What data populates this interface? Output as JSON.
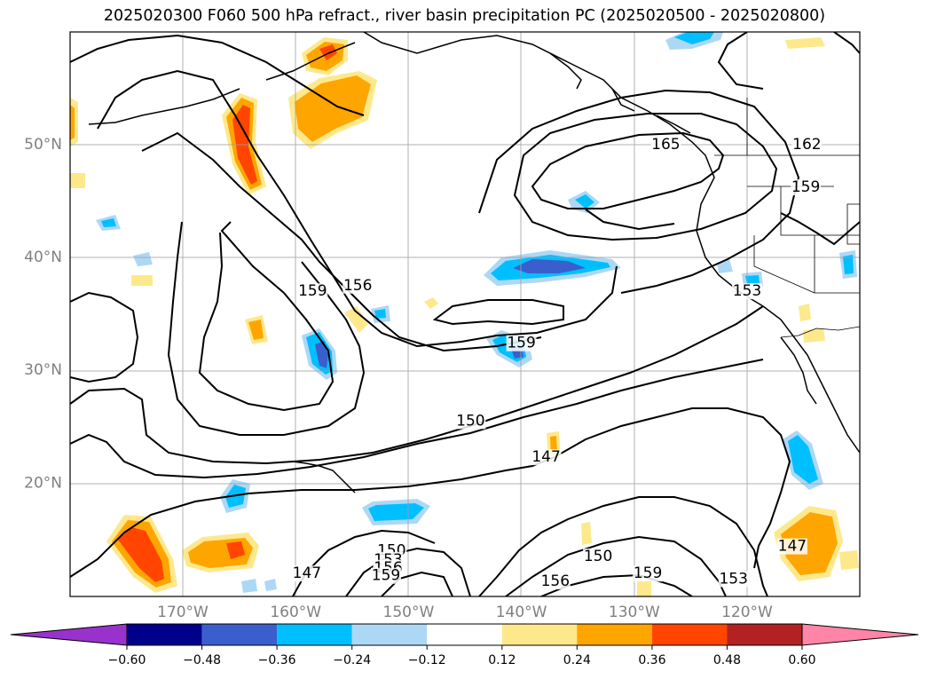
{
  "title": "2025020300 F060 500 hPa refract., river basin precipitation PC (2025020500 - 2025020800)",
  "map": {
    "lat_labels": [
      {
        "lat": 50,
        "text": "50°N"
      },
      {
        "lat": 40,
        "text": "40°N"
      },
      {
        "lat": 30,
        "text": "30°N"
      },
      {
        "lat": 20,
        "text": "20°N"
      }
    ],
    "lon_labels": [
      {
        "lon": -170,
        "text": "170°W"
      },
      {
        "lon": -160,
        "text": "160°W"
      },
      {
        "lon": -150,
        "text": "150°W"
      },
      {
        "lon": -140,
        "text": "140°W"
      },
      {
        "lon": -130,
        "text": "130°W"
      },
      {
        "lon": -120,
        "text": "120°W"
      }
    ],
    "grid_lines": true,
    "contour_labels": [
      {
        "text": "165",
        "lon": -127.2,
        "lat": 50.0
      },
      {
        "text": "162",
        "lon": -114.7,
        "lat": 50.0
      },
      {
        "text": "159",
        "lon": -114.8,
        "lat": 46.2
      },
      {
        "text": "156",
        "lon": -154.5,
        "lat": 37.5
      },
      {
        "text": "159",
        "lon": -158.5,
        "lat": 37.0
      },
      {
        "text": "153",
        "lon": -120.0,
        "lat": 37.0
      },
      {
        "text": "159",
        "lon": -140.0,
        "lat": 32.4
      },
      {
        "text": "150",
        "lon": -144.5,
        "lat": 25.5
      },
      {
        "text": "147",
        "lon": -137.8,
        "lat": 22.3
      },
      {
        "text": "147",
        "lon": -116.0,
        "lat": 14.4
      },
      {
        "text": "150",
        "lon": -151.5,
        "lat": 14.0
      },
      {
        "text": "153",
        "lon": -151.8,
        "lat": 13.2
      },
      {
        "text": "156",
        "lon": -151.8,
        "lat": 12.5
      },
      {
        "text": "159",
        "lon": -152.0,
        "lat": 11.8
      },
      {
        "text": "147",
        "lon": -159.0,
        "lat": 12.0
      },
      {
        "text": "150",
        "lon": -133.2,
        "lat": 13.5
      },
      {
        "text": "159",
        "lon": -128.8,
        "lat": 12.0
      },
      {
        "text": "156",
        "lon": -137.0,
        "lat": 11.3
      },
      {
        "text": "153",
        "lon": -121.2,
        "lat": 11.5
      }
    ]
  },
  "colorbar": {
    "ticks": [
      "−0.60",
      "−0.48",
      "−0.36",
      "−0.24",
      "−0.12",
      "0.12",
      "0.24",
      "0.36",
      "0.48",
      "0.60"
    ],
    "colors": [
      "#9932cc",
      "#00008b",
      "#3a5fcd",
      "#00bfff",
      "#add8f5",
      "#ffffff",
      "#fde98c",
      "#ffa500",
      "#ff4500",
      "#b22222",
      "#ff85a8"
    ]
  },
  "colors": {
    "contour": "#000000",
    "grid": "#9e9e9e",
    "coast": "#000000"
  }
}
